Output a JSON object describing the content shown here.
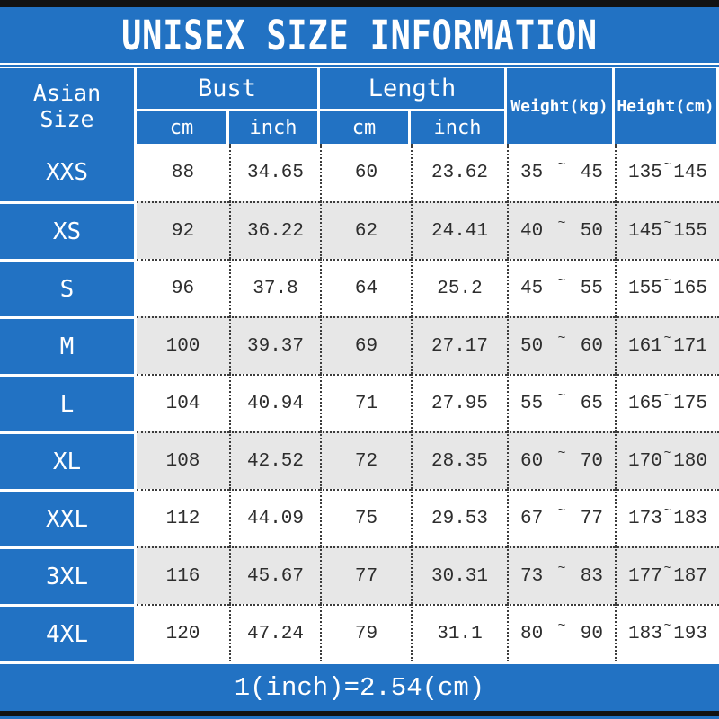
{
  "title": "UNISEX SIZE INFORMATION",
  "conversion_note": "1(inch)=2.54(cm)",
  "colors": {
    "accent_blue": "#2272c3",
    "row_alt_gray": "#e7e7e7",
    "bar_black": "#121212",
    "grid_dot_gray": "#3c3c3c",
    "text_dark": "#2d2d2d"
  },
  "table": {
    "size_column_header": "Asian Size",
    "groups": [
      {
        "label": "Bust",
        "sub": [
          "cm",
          "inch"
        ]
      },
      {
        "label": "Length",
        "sub": [
          "cm",
          "inch"
        ]
      }
    ],
    "single_column_headers": [
      "Weight(kg)",
      "Height(cm)"
    ],
    "range_separator": "~",
    "rows": [
      {
        "size": "XXS",
        "bust_cm": "88",
        "bust_inch": "34.65",
        "length_cm": "60",
        "length_inch": "23.62",
        "weight": [
          "35",
          "45"
        ],
        "height": [
          "135",
          "145"
        ]
      },
      {
        "size": "XS",
        "bust_cm": "92",
        "bust_inch": "36.22",
        "length_cm": "62",
        "length_inch": "24.41",
        "weight": [
          "40",
          "50"
        ],
        "height": [
          "145",
          "155"
        ]
      },
      {
        "size": "S",
        "bust_cm": "96",
        "bust_inch": "37.8",
        "length_cm": "64",
        "length_inch": "25.2",
        "weight": [
          "45",
          "55"
        ],
        "height": [
          "155",
          "165"
        ]
      },
      {
        "size": "M",
        "bust_cm": "100",
        "bust_inch": "39.37",
        "length_cm": "69",
        "length_inch": "27.17",
        "weight": [
          "50",
          "60"
        ],
        "height": [
          "161",
          "171"
        ]
      },
      {
        "size": "L",
        "bust_cm": "104",
        "bust_inch": "40.94",
        "length_cm": "71",
        "length_inch": "27.95",
        "weight": [
          "55",
          "65"
        ],
        "height": [
          "165",
          "175"
        ]
      },
      {
        "size": "XL",
        "bust_cm": "108",
        "bust_inch": "42.52",
        "length_cm": "72",
        "length_inch": "28.35",
        "weight": [
          "60",
          "70"
        ],
        "height": [
          "170",
          "180"
        ]
      },
      {
        "size": "XXL",
        "bust_cm": "112",
        "bust_inch": "44.09",
        "length_cm": "75",
        "length_inch": "29.53",
        "weight": [
          "67",
          "77"
        ],
        "height": [
          "173",
          "183"
        ]
      },
      {
        "size": "3XL",
        "bust_cm": "116",
        "bust_inch": "45.67",
        "length_cm": "77",
        "length_inch": "30.31",
        "weight": [
          "73",
          "83"
        ],
        "height": [
          "177",
          "187"
        ]
      },
      {
        "size": "4XL",
        "bust_cm": "120",
        "bust_inch": "47.24",
        "length_cm": "79",
        "length_inch": "31.1",
        "weight": [
          "80",
          "90"
        ],
        "height": [
          "183",
          "193"
        ]
      }
    ]
  }
}
